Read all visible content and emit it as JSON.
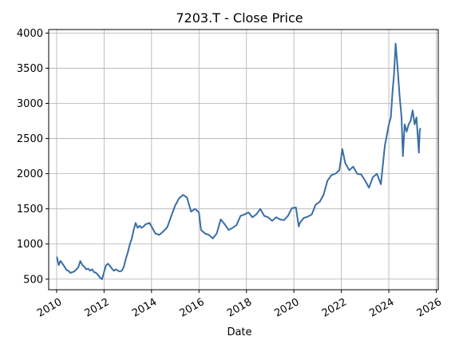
{
  "chart_data": {
    "type": "line",
    "title": "7203.T - Close Price",
    "xlabel": "Date",
    "ylabel": "",
    "grid": true,
    "xlim": [
      "2009-09-01",
      "2026-01-31"
    ],
    "ylim": [
      350,
      4050
    ],
    "x_ticks": [
      "2010",
      "2012",
      "2014",
      "2016",
      "2018",
      "2020",
      "2022",
      "2024",
      "2026"
    ],
    "y_ticks": [
      "500",
      "1000",
      "1500",
      "2000",
      "2500",
      "3000",
      "3500",
      "4000"
    ],
    "line_color": "#3a6ea5",
    "series": [
      {
        "name": "",
        "x": [
          "2010-01-04",
          "2010-02-01",
          "2010-03-01",
          "2010-04-01",
          "2010-05-01",
          "2010-06-01",
          "2010-07-01",
          "2010-08-01",
          "2010-09-01",
          "2010-10-01",
          "2010-11-01",
          "2010-12-01",
          "2011-01-01",
          "2011-02-01",
          "2011-03-01",
          "2011-04-01",
          "2011-05-01",
          "2011-06-01",
          "2011-07-01",
          "2011-08-01",
          "2011-09-01",
          "2011-10-01",
          "2011-11-01",
          "2011-12-01",
          "2012-01-01",
          "2012-02-01",
          "2012-03-01",
          "2012-04-01",
          "2012-05-01",
          "2012-06-01",
          "2012-07-01",
          "2012-08-01",
          "2012-09-01",
          "2012-10-01",
          "2012-11-01",
          "2012-12-01",
          "2013-01-01",
          "2013-02-01",
          "2013-03-01",
          "2013-04-01",
          "2013-05-01",
          "2013-06-01",
          "2013-07-01",
          "2013-08-01",
          "2013-09-01",
          "2013-10-01",
          "2013-11-01",
          "2013-12-01",
          "2014-01-01",
          "2014-03-01",
          "2014-05-01",
          "2014-07-01",
          "2014-09-01",
          "2014-11-01",
          "2015-01-01",
          "2015-03-01",
          "2015-05-01",
          "2015-07-01",
          "2015-09-01",
          "2015-11-01",
          "2016-01-01",
          "2016-02-01",
          "2016-04-01",
          "2016-06-01",
          "2016-08-01",
          "2016-10-01",
          "2016-12-01",
          "2017-02-01",
          "2017-04-01",
          "2017-06-01",
          "2017-08-01",
          "2017-10-01",
          "2017-12-01",
          "2018-02-01",
          "2018-04-01",
          "2018-06-01",
          "2018-08-01",
          "2018-10-01",
          "2018-12-01",
          "2019-02-01",
          "2019-04-01",
          "2019-06-01",
          "2019-08-01",
          "2019-10-01",
          "2019-12-01",
          "2020-02-01",
          "2020-03-15",
          "2020-04-01",
          "2020-06-01",
          "2020-08-01",
          "2020-10-01",
          "2020-12-01",
          "2021-02-01",
          "2021-04-01",
          "2021-06-01",
          "2021-08-01",
          "2021-10-01",
          "2021-12-01",
          "2022-01-15",
          "2022-03-01",
          "2022-05-01",
          "2022-07-01",
          "2022-09-01",
          "2022-11-01",
          "2023-01-01",
          "2023-03-01",
          "2023-05-01",
          "2023-07-01",
          "2023-09-01",
          "2023-11-01",
          "2024-01-01",
          "2024-02-01",
          "2024-03-01",
          "2024-03-20",
          "2024-04-15",
          "2024-05-15",
          "2024-06-15",
          "2024-07-15",
          "2024-08-05",
          "2024-09-01",
          "2024-10-01",
          "2024-11-01",
          "2024-12-01",
          "2025-01-01",
          "2025-02-01",
          "2025-03-01",
          "2025-04-07",
          "2025-04-20",
          "2025-05-01"
        ],
        "values": [
          820,
          700,
          760,
          720,
          680,
          630,
          620,
          590,
          600,
          610,
          640,
          670,
          760,
          700,
          680,
          640,
          650,
          620,
          640,
          600,
          590,
          560,
          520,
          500,
          600,
          700,
          720,
          690,
          650,
          620,
          640,
          620,
          610,
          620,
          680,
          790,
          880,
          1000,
          1070,
          1200,
          1300,
          1230,
          1260,
          1230,
          1250,
          1280,
          1290,
          1300,
          1250,
          1150,
          1130,
          1180,
          1240,
          1400,
          1550,
          1650,
          1700,
          1660,
          1460,
          1500,
          1450,
          1200,
          1150,
          1130,
          1080,
          1150,
          1350,
          1280,
          1200,
          1230,
          1270,
          1400,
          1420,
          1450,
          1380,
          1420,
          1500,
          1400,
          1380,
          1330,
          1380,
          1350,
          1340,
          1400,
          1510,
          1520,
          1250,
          1300,
          1370,
          1390,
          1420,
          1560,
          1600,
          1700,
          1900,
          1980,
          2000,
          2050,
          2350,
          2150,
          2050,
          2100,
          2000,
          1990,
          1900,
          1800,
          1950,
          2000,
          1850,
          2400,
          2700,
          2800,
          3200,
          3400,
          3850,
          3500,
          3100,
          2800,
          2250,
          2700,
          2600,
          2700,
          2750,
          2900,
          2700,
          2800,
          2300,
          2600,
          2650
        ]
      }
    ]
  }
}
